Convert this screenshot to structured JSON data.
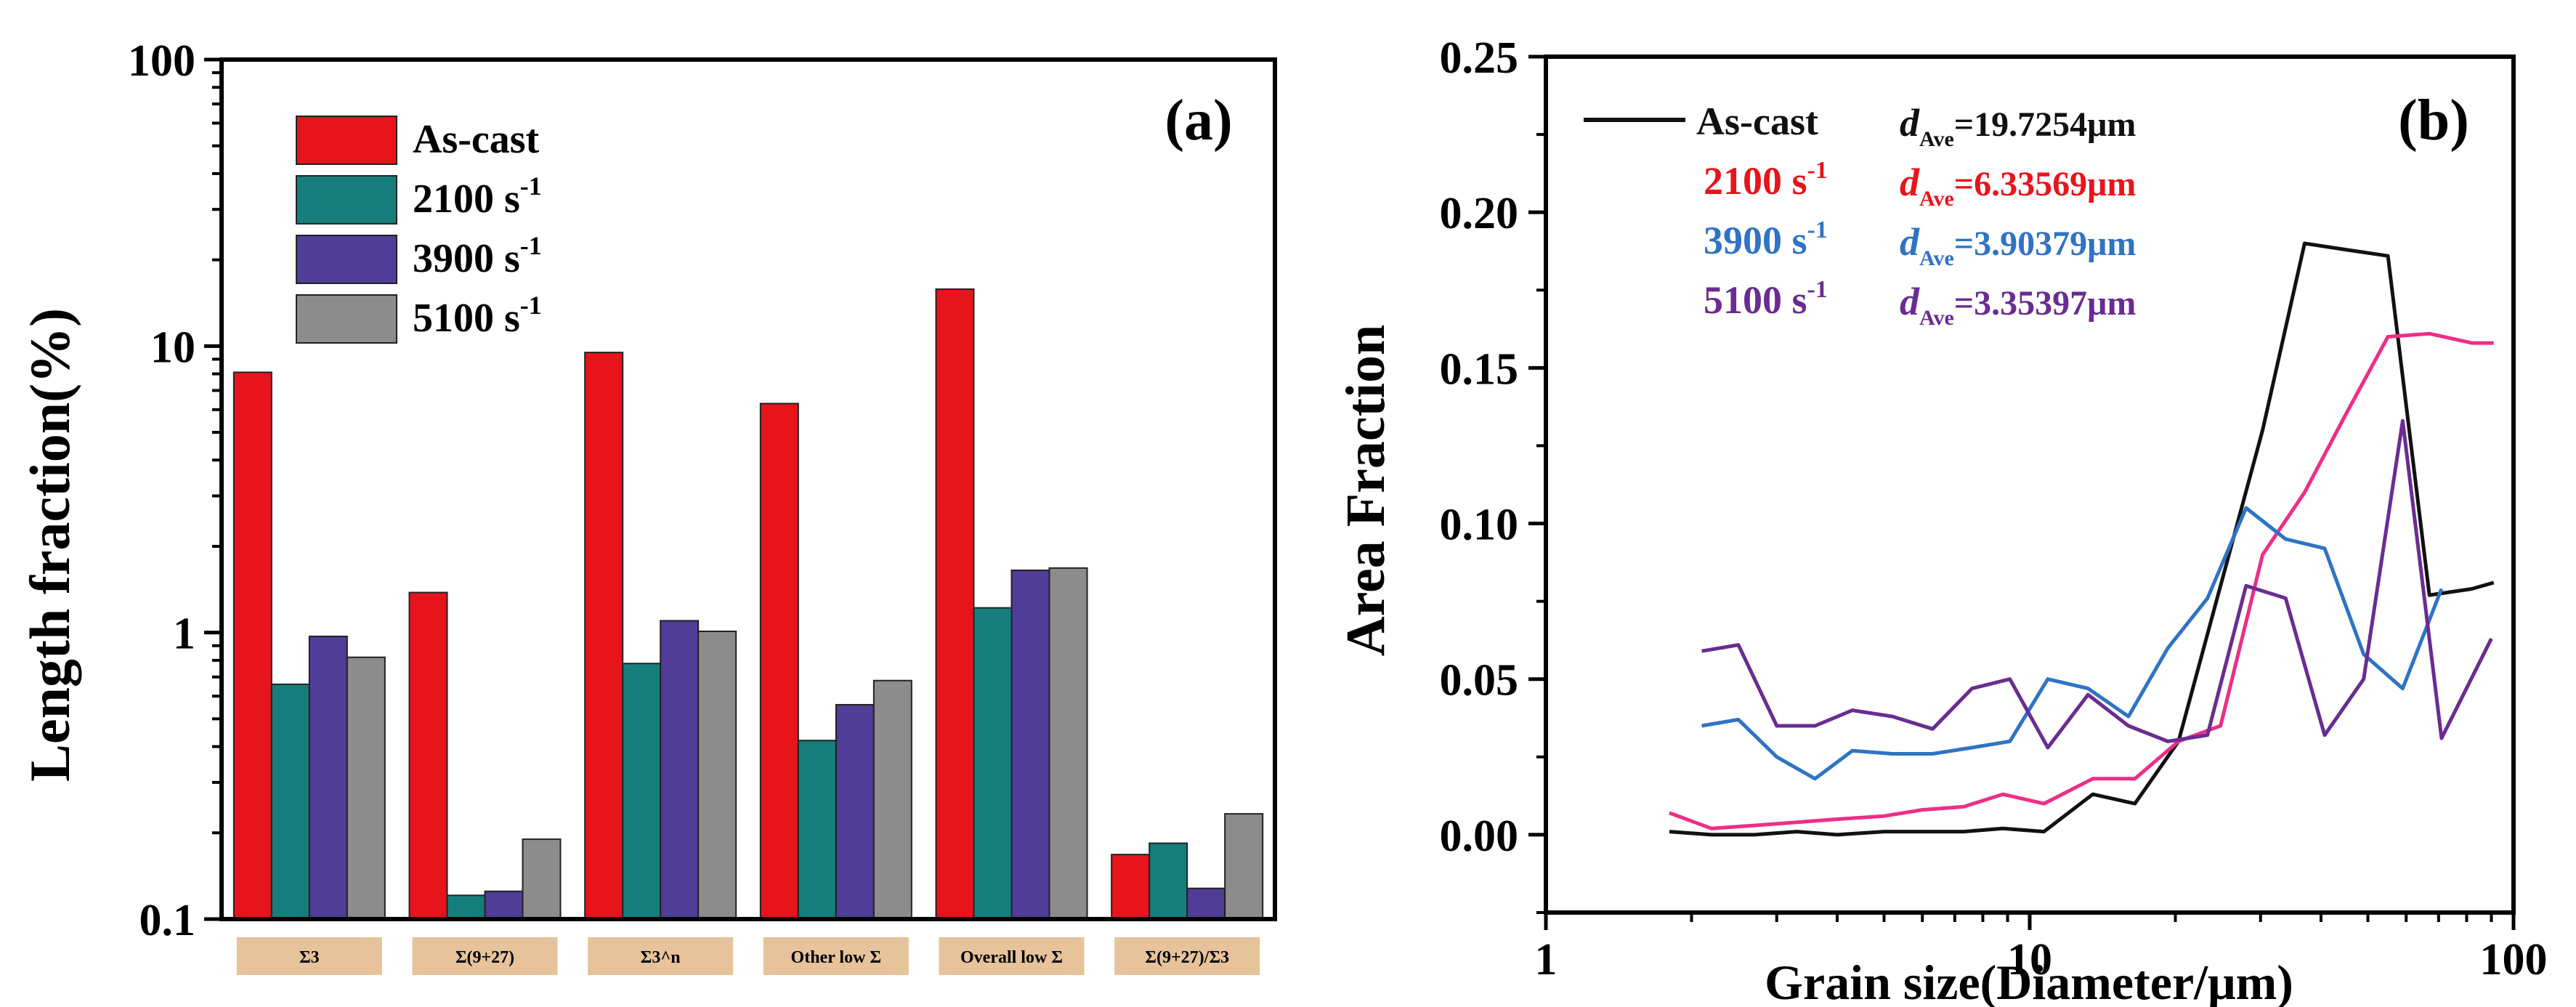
{
  "chart_data": [
    {
      "panel": "(a)",
      "type": "bar",
      "yscale": "log",
      "ylabel": "Length fraction(%)",
      "ylim": [
        0.1,
        100
      ],
      "ytick_labels": [
        "0.1",
        "1",
        "10",
        "100"
      ],
      "categories": [
        "Σ3",
        "Σ(9+27)",
        "Σ3^n",
        "Other low Σ",
        "Overall low Σ",
        "Σ(9+27)/Σ3"
      ],
      "series": [
        {
          "name": "As-cast",
          "color": "#e8141b",
          "values": [
            8.1,
            1.38,
            9.5,
            6.3,
            15.8,
            0.168
          ]
        },
        {
          "name": "2100 s",
          "color": "#157e7c",
          "values": [
            0.66,
            0.121,
            0.78,
            0.42,
            1.22,
            0.184
          ]
        },
        {
          "name": "3900 s",
          "color": "#4f3d98",
          "values": [
            0.97,
            0.125,
            1.1,
            0.56,
            1.65,
            0.128
          ]
        },
        {
          "name": "5100 s",
          "color": "#8c8c8c",
          "values": [
            0.82,
            0.19,
            1.01,
            0.68,
            1.68,
            0.233
          ]
        }
      ],
      "legend_superscript": "-1",
      "legend": "top-left"
    },
    {
      "panel": "(b)",
      "type": "line",
      "xscale": "log",
      "xlabel": "Grain size(Diameter/μm)",
      "ylabel": "Area Fraction",
      "xlim": [
        1,
        100
      ],
      "ylim": [
        -0.025,
        0.25
      ],
      "xtick_labels": [
        "1",
        "10",
        "100"
      ],
      "ytick_labels": [
        "0.00",
        "0.05",
        "0.10",
        "0.15",
        "0.20",
        "0.25"
      ],
      "d_symbol": "d",
      "d_subscript": "Ave",
      "legend": "top-left",
      "series": [
        {
          "name": "As-cast",
          "superscript": "",
          "annotation": "=19.7254μm",
          "color": "#111111",
          "name_color": "#111111",
          "ann_color": "#111111",
          "x": [
            1.8,
            2.2,
            2.7,
            3.3,
            4.0,
            5.0,
            6.0,
            7.3,
            8.8,
            10.7,
            13.5,
            16.5,
            20.3,
            24.8,
            30.3,
            37.0,
            45.0,
            55.0,
            67.0,
            82.0,
            91.0
          ],
          "y": [
            0.001,
            0.0,
            0.0,
            0.001,
            0.0,
            0.001,
            0.001,
            0.001,
            0.002,
            0.001,
            0.013,
            0.01,
            0.03,
            0.08,
            0.13,
            0.19,
            0.188,
            0.186,
            0.077,
            0.079,
            0.081
          ]
        },
        {
          "name": "2100 s",
          "superscript": "-1",
          "annotation": "=6.33569μm",
          "color": "#ec2f86",
          "name_color": "#e8141b",
          "ann_color": "#e8141b",
          "x": [
            1.8,
            2.2,
            2.7,
            3.3,
            4.0,
            5.0,
            6.0,
            7.3,
            8.8,
            10.7,
            13.5,
            16.5,
            20.3,
            24.8,
            30.3,
            37.0,
            45.0,
            55.0,
            67.0,
            82.0,
            91.0
          ],
          "y": [
            0.007,
            0.002,
            0.003,
            0.004,
            0.005,
            0.006,
            0.008,
            0.009,
            0.013,
            0.01,
            0.018,
            0.018,
            0.03,
            0.035,
            0.09,
            0.11,
            0.135,
            0.16,
            0.161,
            0.158,
            0.158
          ]
        },
        {
          "name": "3900 s",
          "superscript": "-1",
          "annotation": "=3.90379μm",
          "color": "#2f73c4",
          "name_color": "#2f73c4",
          "ann_color": "#2f73c4",
          "x": [
            2.1,
            2.5,
            3.0,
            3.6,
            4.3,
            5.2,
            6.3,
            7.6,
            9.1,
            10.9,
            13.2,
            16.0,
            19.3,
            23.3,
            28.0,
            33.8,
            40.7,
            49.0,
            59.0,
            71.0
          ],
          "y": [
            0.035,
            0.037,
            0.025,
            0.018,
            0.027,
            0.026,
            0.026,
            0.028,
            0.03,
            0.05,
            0.047,
            0.038,
            0.06,
            0.076,
            0.105,
            0.095,
            0.092,
            0.058,
            0.047,
            0.079
          ]
        },
        {
          "name": "5100 s",
          "superscript": "-1",
          "annotation": "=3.35397μm",
          "color": "#6a2c91",
          "name_color": "#6a2c91",
          "ann_color": "#6a2c91",
          "x": [
            2.1,
            2.5,
            3.0,
            3.6,
            4.3,
            5.2,
            6.3,
            7.6,
            9.1,
            10.9,
            13.2,
            16.0,
            19.3,
            23.3,
            28.0,
            33.8,
            40.7,
            49.0,
            59.0,
            71.0,
            90.0
          ],
          "y": [
            0.059,
            0.061,
            0.035,
            0.035,
            0.04,
            0.038,
            0.034,
            0.047,
            0.05,
            0.028,
            0.045,
            0.035,
            0.03,
            0.032,
            0.08,
            0.076,
            0.032,
            0.05,
            0.133,
            0.031,
            0.063
          ]
        }
      ]
    }
  ]
}
